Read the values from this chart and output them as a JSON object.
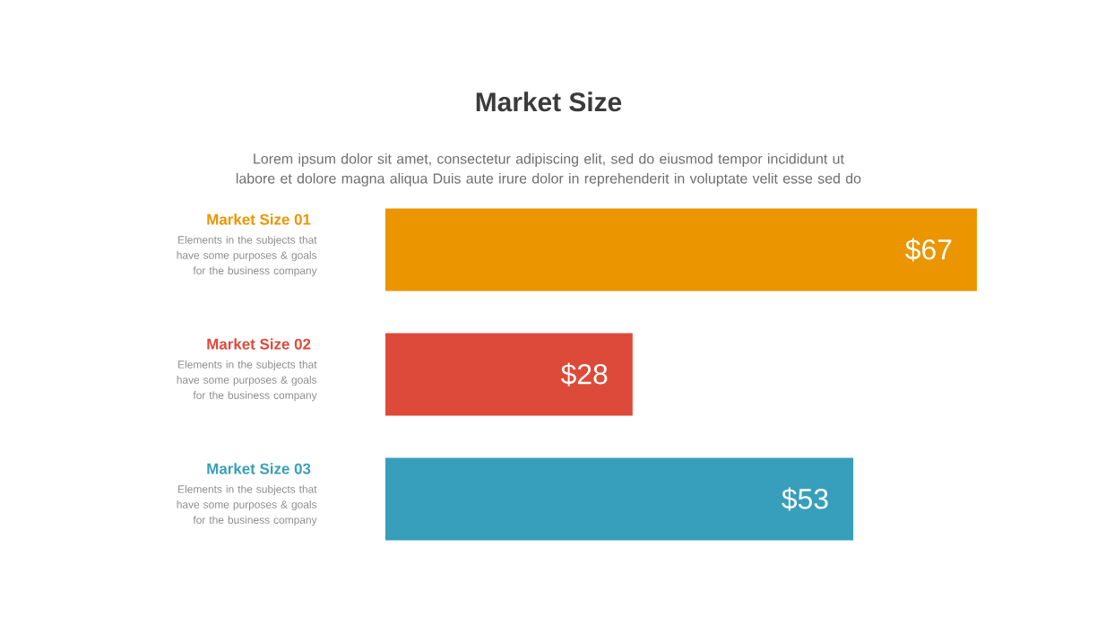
{
  "chart_data": {
    "type": "bar",
    "orientation": "horizontal",
    "title": "Market Size",
    "subtitle": "Lorem ipsum dolor sit amet, consectetur adipiscing elit, sed do eiusmod tempor incididunt ut labore et dolore magna aliqua Duis aute irure dolor in reprehenderit in voluptate velit esse sed do",
    "categories": [
      "Market Size 01",
      "Market Size 02",
      "Market Size 03"
    ],
    "values": [
      67,
      28,
      53
    ],
    "value_labels": [
      "$67",
      "$28",
      "$53"
    ],
    "colors": [
      "#eb9500",
      "#dd4a3a",
      "#379fbc"
    ],
    "annotations": [
      "Elements in the subjects that have  some purposes & goals for the  business company",
      "Elements in the subjects that have  some purposes & goals for the  business company",
      "Elements in the subjects that have  some purposes & goals for the  business company"
    ]
  }
}
